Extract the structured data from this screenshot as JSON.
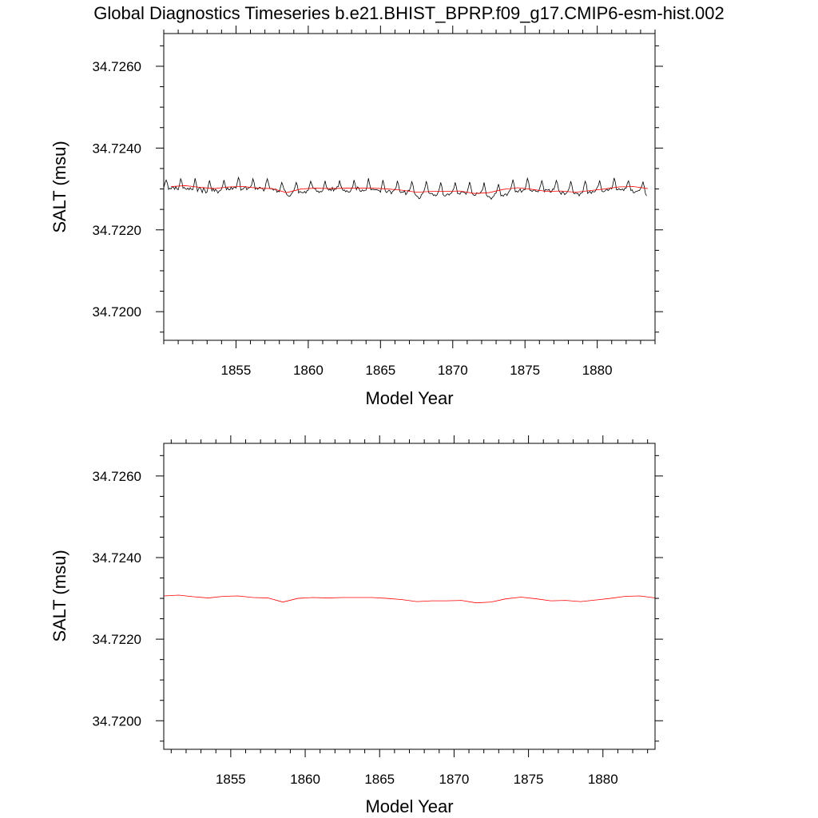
{
  "title": "Global Diagnostics Timeseries b.e21.BHIST_BPRP.f09_g17.CMIP6-esm-hist.002",
  "colors": {
    "monthly": "#000000",
    "annual": "#ff0000",
    "frame": "#000000"
  },
  "chart_data": [
    {
      "type": "line",
      "xlabel": "Model Year",
      "ylabel": "SALT (msu)",
      "xlim": [
        1850.0,
        1884.0
      ],
      "ylim": [
        34.7193,
        34.7268
      ],
      "xticks": [
        1855,
        1860,
        1865,
        1870,
        1875,
        1880
      ],
      "xtick_labels": [
        "1855",
        "1860",
        "1865",
        "1870",
        "1875",
        "1880"
      ],
      "yticks": [
        34.72,
        34.722,
        34.724,
        34.726
      ],
      "ytick_labels": [
        "34.7200",
        "34.7220",
        "34.7240",
        "34.7260"
      ],
      "grid": false,
      "series": [
        {
          "color": "#000000",
          "width": 0.8,
          "x_start": 1850.0,
          "x_step": 0.0833333,
          "y": [
            34.72303,
            34.72315,
            34.72322,
            34.72314,
            34.72299,
            34.72302,
            34.723,
            34.72305,
            34.72305,
            34.72299,
            34.72306,
            34.723,
            34.72298,
            34.72309,
            34.72325,
            34.72318,
            34.72302,
            34.72304,
            34.723,
            34.72299,
            34.72302,
            34.72298,
            34.72303,
            34.72299,
            34.72298,
            34.72309,
            34.72326,
            34.72313,
            34.72294,
            34.72301,
            34.72304,
            34.72299,
            34.72291,
            34.72303,
            34.72298,
            34.7229,
            34.72293,
            34.72309,
            34.72321,
            34.72308,
            34.72295,
            34.72302,
            34.72294,
            34.72299,
            34.72296,
            34.7229,
            34.72295,
            34.72296,
            34.723,
            34.72309,
            34.72322,
            34.7231,
            34.72298,
            34.72303,
            34.72298,
            34.72298,
            34.72305,
            34.72299,
            34.72303,
            34.72305,
            34.72302,
            34.72315,
            34.72328,
            34.7232,
            34.72297,
            34.72299,
            34.723,
            34.72304,
            34.72306,
            34.72298,
            34.72302,
            34.72303,
            34.72305,
            34.7231,
            34.72325,
            34.72316,
            34.72299,
            34.72303,
            34.72299,
            34.72303,
            34.72304,
            34.72301,
            34.72302,
            34.72295,
            34.723,
            34.72316,
            34.72325,
            34.72314,
            34.72302,
            34.723,
            34.72301,
            34.72297,
            34.72299,
            34.723,
            34.72292,
            34.72295,
            34.72293,
            34.72305,
            34.72316,
            34.72308,
            34.72298,
            34.72295,
            34.72287,
            34.72284,
            34.72282,
            34.72283,
            34.72288,
            34.72292,
            34.72296,
            34.72305,
            34.72316,
            34.72308,
            34.7229,
            34.72294,
            34.72292,
            34.72291,
            34.72291,
            34.72294,
            34.7229,
            34.72296,
            34.72297,
            34.72308,
            34.72319,
            34.72311,
            34.72303,
            34.72301,
            34.723,
            34.72294,
            34.72295,
            34.72291,
            34.72294,
            34.72293,
            34.72296,
            34.72308,
            34.7232,
            34.72306,
            34.72301,
            34.72297,
            34.723,
            34.72296,
            34.72304,
            34.72295,
            34.72301,
            34.72299,
            34.72306,
            34.72306,
            34.72321,
            34.72309,
            34.72301,
            34.72296,
            34.72298,
            34.72293,
            34.72296,
            34.72293,
            34.72292,
            34.72294,
            34.72301,
            34.72306,
            34.72322,
            34.72311,
            34.72298,
            34.72305,
            34.72302,
            34.72295,
            34.72294,
            34.72298,
            34.72295,
            34.72297,
            34.72297,
            34.72309,
            34.72326,
            34.72312,
            34.72298,
            34.72299,
            34.72299,
            34.72298,
            34.72298,
            34.72298,
            34.72297,
            34.72296,
            34.72292,
            34.72307,
            34.72322,
            34.7231,
            34.72295,
            34.72291,
            34.72294,
            34.72297,
            34.72295,
            34.72288,
            34.72294,
            34.72296,
            34.72299,
            34.72304,
            34.7232,
            34.7231,
            34.72294,
            34.72291,
            34.72293,
            34.72292,
            34.72296,
            34.72286,
            34.7229,
            34.72297,
            34.72296,
            34.72305,
            34.72318,
            34.72309,
            34.72291,
            34.72286,
            34.72283,
            34.72281,
            34.72276,
            34.72278,
            34.72286,
            34.72289,
            34.72294,
            34.72304,
            34.72319,
            34.72308,
            34.72291,
            34.72289,
            34.72289,
            34.72289,
            34.72284,
            34.72286,
            34.72283,
            34.72286,
            34.72293,
            34.72302,
            34.72316,
            34.72305,
            34.72286,
            34.72283,
            34.72283,
            34.72287,
            34.72288,
            34.72285,
            34.72289,
            34.7229,
            34.72296,
            34.72302,
            34.72316,
            34.72305,
            34.72289,
            34.72289,
            34.72287,
            34.72293,
            34.72293,
            34.72292,
            34.72291,
            34.72287,
            34.72293,
            34.72304,
            34.72317,
            34.72306,
            34.7229,
            34.72286,
            34.72284,
            34.72285,
            34.72291,
            34.72289,
            34.72289,
            34.72291,
            34.72295,
            34.723,
            34.72316,
            34.72301,
            34.72285,
            34.72281,
            34.72282,
            34.72279,
            34.72275,
            34.7228,
            34.72282,
            34.72289,
            34.7229,
            34.72301,
            34.72312,
            34.72299,
            34.72283,
            34.72285,
            34.72282,
            34.72287,
            34.72288,
            34.72284,
            34.7229,
            34.72295,
            34.72299,
            34.7231,
            34.72323,
            34.7231,
            34.72293,
            34.72295,
            34.72292,
            34.72296,
            34.723,
            34.72292,
            34.72295,
            34.72299,
            34.72298,
            34.72311,
            34.72326,
            34.72317,
            34.72297,
            34.72296,
            34.72294,
            34.72297,
            34.72298,
            34.72294,
            34.72294,
            34.72293,
            34.723,
            34.72309,
            34.72321,
            34.72309,
            34.72293,
            34.72299,
            34.72298,
            34.72297,
            34.72299,
            34.72292,
            34.72293,
            34.723,
            34.72299,
            34.72309,
            34.72321,
            34.72313,
            34.72296,
            34.72292,
            34.72287,
            34.72293,
            34.72292,
            34.72286,
            34.72289,
            34.72292,
            34.72297,
            34.72305,
            34.72319,
            34.72308,
            34.72292,
            34.72288,
            34.7229,
            34.72289,
            34.72289,
            34.72283,
            34.72289,
            34.7229,
            34.72292,
            34.72308,
            34.72319,
            34.72311,
            34.72289,
            34.72292,
            34.72294,
            34.72289,
            34.72294,
            34.72293,
            34.72293,
            34.72298,
            34.72304,
            34.72309,
            34.72321,
            34.72307,
            34.72294,
            34.72293,
            34.72294,
            34.72297,
            34.723,
            34.72296,
            34.72299,
            34.72303,
            34.723,
            34.72311,
            34.72327,
            34.72317,
            34.72298,
            34.72298,
            34.72301,
            34.72298,
            34.72298,
            34.723,
            34.72296,
            34.72302,
            34.72302,
            34.72314,
            34.7232,
            34.72309,
            34.72296,
            34.72298,
            34.72291,
            34.72291,
            34.72294,
            34.72294,
            34.72296,
            34.72296,
            34.72301,
            34.72307,
            34.72318,
            34.72306,
            34.72289,
            34.72283
          ]
        },
        {
          "color": "#ff0000",
          "width": 0.8,
          "x": [
            1850.5,
            1851.5,
            1852.5,
            1853.5,
            1854.5,
            1855.5,
            1856.5,
            1857.5,
            1858.5,
            1859.5,
            1860.5,
            1861.5,
            1862.5,
            1863.5,
            1864.5,
            1865.5,
            1866.5,
            1867.5,
            1868.5,
            1869.5,
            1870.5,
            1871.5,
            1872.5,
            1873.5,
            1874.5,
            1875.5,
            1876.5,
            1877.5,
            1878.5,
            1879.5,
            1880.5,
            1881.5,
            1882.5,
            1883.5
          ],
          "y": [
            34.72306,
            34.72308,
            34.72304,
            34.72301,
            34.72305,
            34.72306,
            34.72302,
            34.72301,
            34.72291,
            34.723,
            34.72302,
            34.72301,
            34.72302,
            34.72302,
            34.72302,
            34.723,
            34.72297,
            34.72292,
            34.72294,
            34.72294,
            34.72295,
            34.72289,
            34.72291,
            34.72299,
            34.72303,
            34.72299,
            34.72294,
            34.72295,
            34.72292,
            34.72296,
            34.723,
            34.72305,
            34.72306,
            34.72301
          ]
        }
      ]
    },
    {
      "type": "line",
      "xlabel": "Model Year",
      "ylabel": "SALT (msu)",
      "xlim": [
        1850.5,
        1883.5
      ],
      "ylim": [
        34.7193,
        34.7268
      ],
      "xticks": [
        1855,
        1860,
        1865,
        1870,
        1875,
        1880
      ],
      "xtick_labels": [
        "1855",
        "1860",
        "1865",
        "1870",
        "1875",
        "1880"
      ],
      "yticks": [
        34.72,
        34.722,
        34.724,
        34.726
      ],
      "ytick_labels": [
        "34.7200",
        "34.7220",
        "34.7240",
        "34.7260"
      ],
      "grid": false,
      "series": [
        {
          "color": "#ff0000",
          "width": 0.8,
          "x": [
            1850.5,
            1851.5,
            1852.5,
            1853.5,
            1854.5,
            1855.5,
            1856.5,
            1857.5,
            1858.5,
            1859.5,
            1860.5,
            1861.5,
            1862.5,
            1863.5,
            1864.5,
            1865.5,
            1866.5,
            1867.5,
            1868.5,
            1869.5,
            1870.5,
            1871.5,
            1872.5,
            1873.5,
            1874.5,
            1875.5,
            1876.5,
            1877.5,
            1878.5,
            1879.5,
            1880.5,
            1881.5,
            1882.5,
            1883.5
          ],
          "y": [
            34.72306,
            34.72308,
            34.72304,
            34.72301,
            34.72305,
            34.72306,
            34.72302,
            34.72301,
            34.72291,
            34.723,
            34.72302,
            34.72301,
            34.72302,
            34.72302,
            34.72302,
            34.723,
            34.72297,
            34.72292,
            34.72294,
            34.72294,
            34.72295,
            34.72289,
            34.72291,
            34.72299,
            34.72303,
            34.72299,
            34.72294,
            34.72295,
            34.72292,
            34.72296,
            34.723,
            34.72305,
            34.72306,
            34.72301
          ]
        }
      ]
    }
  ]
}
